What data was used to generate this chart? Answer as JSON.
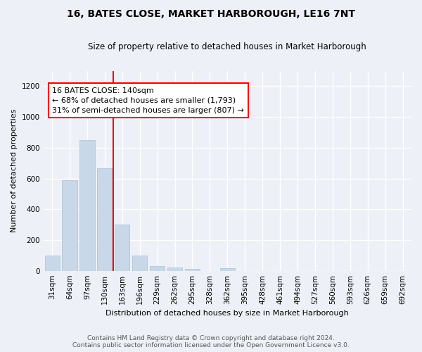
{
  "title": "16, BATES CLOSE, MARKET HARBOROUGH, LE16 7NT",
  "subtitle": "Size of property relative to detached houses in Market Harborough",
  "xlabel": "Distribution of detached houses by size in Market Harborough",
  "ylabel": "Number of detached properties",
  "bar_labels": [
    "31sqm",
    "64sqm",
    "97sqm",
    "130sqm",
    "163sqm",
    "196sqm",
    "229sqm",
    "262sqm",
    "295sqm",
    "328sqm",
    "362sqm",
    "395sqm",
    "428sqm",
    "461sqm",
    "494sqm",
    "527sqm",
    "560sqm",
    "593sqm",
    "626sqm",
    "659sqm",
    "692sqm"
  ],
  "bar_heights": [
    97,
    590,
    848,
    665,
    302,
    100,
    30,
    20,
    10,
    0,
    15,
    0,
    0,
    0,
    0,
    0,
    0,
    0,
    0,
    0,
    0
  ],
  "bar_color": "#c8d8e8",
  "bar_edge_color": "#a8bfd0",
  "annotation_text": "16 BATES CLOSE: 140sqm\n← 68% of detached houses are smaller (1,793)\n31% of semi-detached houses are larger (807) →",
  "vline_x_index": 3.5,
  "vline_color": "red",
  "ylim": [
    0,
    1300
  ],
  "yticks": [
    0,
    200,
    400,
    600,
    800,
    1000,
    1200
  ],
  "footer_text": "Contains HM Land Registry data © Crown copyright and database right 2024.\nContains public sector information licensed under the Open Government Licence v3.0.",
  "bg_color": "#edf1f7",
  "plot_bg_color": "#edf1f7",
  "grid_color": "#ffffff"
}
